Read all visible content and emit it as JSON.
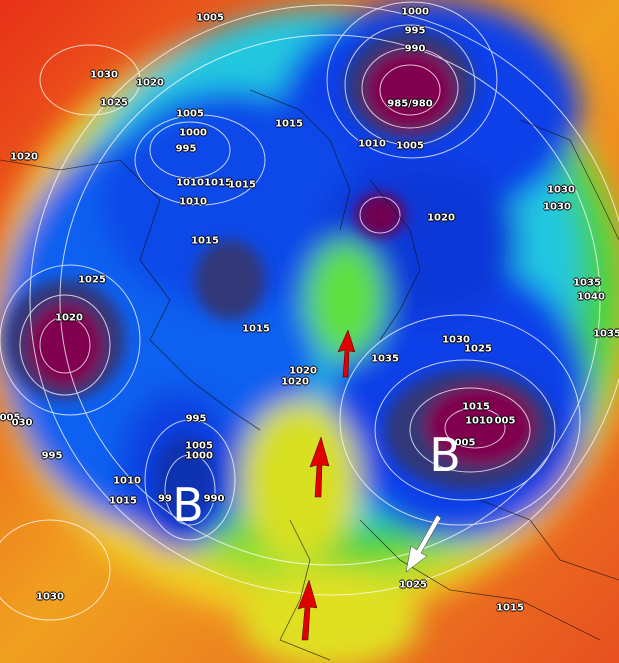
{
  "map": {
    "type": "mean sea level pressure chart, Northern Hemisphere polar projection",
    "colors": {
      "high": "#e8301c",
      "mid": "#f0e020",
      "neutral": "#40d040",
      "low": "#1030e0",
      "deep_low": "#800050",
      "isobars": "#ffffff",
      "arrows_red": "#e00000",
      "arrow_white": "#ffffff"
    },
    "isobar_labels": [
      "1005",
      "1000",
      "995",
      "990",
      "985/980",
      "1010",
      "1005",
      "1030",
      "1020",
      "1025",
      "1005",
      "1000",
      "995",
      "1015",
      "1020",
      "1010",
      "1015",
      "1015",
      "1010",
      "1015",
      "1020",
      "1030",
      "1030",
      "1025",
      "1020",
      "1015",
      "1035",
      "1040",
      "1035",
      "1035",
      "1030",
      "1025",
      "1020",
      "1020",
      "995",
      "1005",
      "1000",
      "1015",
      "1010",
      "005",
      "005",
      "005",
      "030",
      "995",
      "1010",
      "1015",
      "99",
      "990",
      "1025",
      "1015",
      "1030"
    ],
    "low_markers": [
      "B",
      "B"
    ],
    "arrows": [
      {
        "color": "red",
        "direction": "north"
      },
      {
        "color": "red",
        "direction": "north"
      },
      {
        "color": "red",
        "direction": "north"
      },
      {
        "color": "white",
        "direction": "south-west"
      }
    ]
  }
}
